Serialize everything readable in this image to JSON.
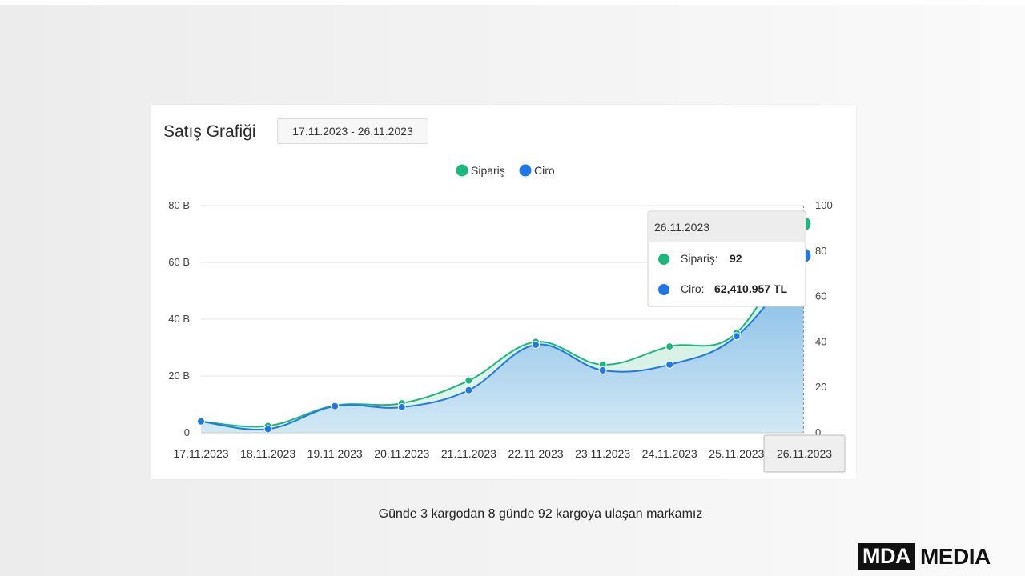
{
  "card": {
    "title": "Satış Grafiği",
    "date_range": "17.11.2023 - 26.11.2023"
  },
  "chart_data": {
    "type": "area",
    "categories": [
      "17.11.2023",
      "18.11.2023",
      "19.11.2023",
      "20.11.2023",
      "21.11.2023",
      "22.11.2023",
      "23.11.2023",
      "24.11.2023",
      "25.11.2023",
      "26.11.2023"
    ],
    "series": [
      {
        "name": "Sipariş",
        "axis": "right",
        "color": "#1cb77c",
        "values": [
          5,
          3,
          12,
          13,
          23,
          40,
          30,
          38,
          44,
          92
        ]
      },
      {
        "name": "Ciro",
        "axis": "left",
        "color": "#1f78e6",
        "values": [
          4.0,
          1.3,
          9.4,
          9.0,
          15.0,
          31.0,
          22.0,
          24.0,
          34.0,
          62.41
        ]
      }
    ],
    "left_axis": {
      "ticks": [
        "0",
        "20 B",
        "40 B",
        "60 B",
        "80 B"
      ],
      "range": [
        0,
        80
      ]
    },
    "right_axis": {
      "ticks": [
        "0",
        "20",
        "40",
        "60",
        "80",
        "100"
      ],
      "range": [
        0,
        100
      ]
    },
    "legend": {
      "placement": "top-center",
      "items": [
        {
          "label": "Sipariş",
          "color": "#1cb77c"
        },
        {
          "label": "Ciro",
          "color": "#1f78e6"
        }
      ]
    },
    "grid": true,
    "tooltip": {
      "date": "26.11.2023",
      "siparis_label": "Sipariş:",
      "siparis_value": "92",
      "ciro_label": "Ciro:",
      "ciro_value": "62,410.957 TL"
    },
    "highlight_index": 9
  },
  "caption": "Günde 3 kargodan 8 günde 92 kargoya ulaşan markamız",
  "brand": {
    "box": "MDA",
    "text": "MEDIA"
  }
}
